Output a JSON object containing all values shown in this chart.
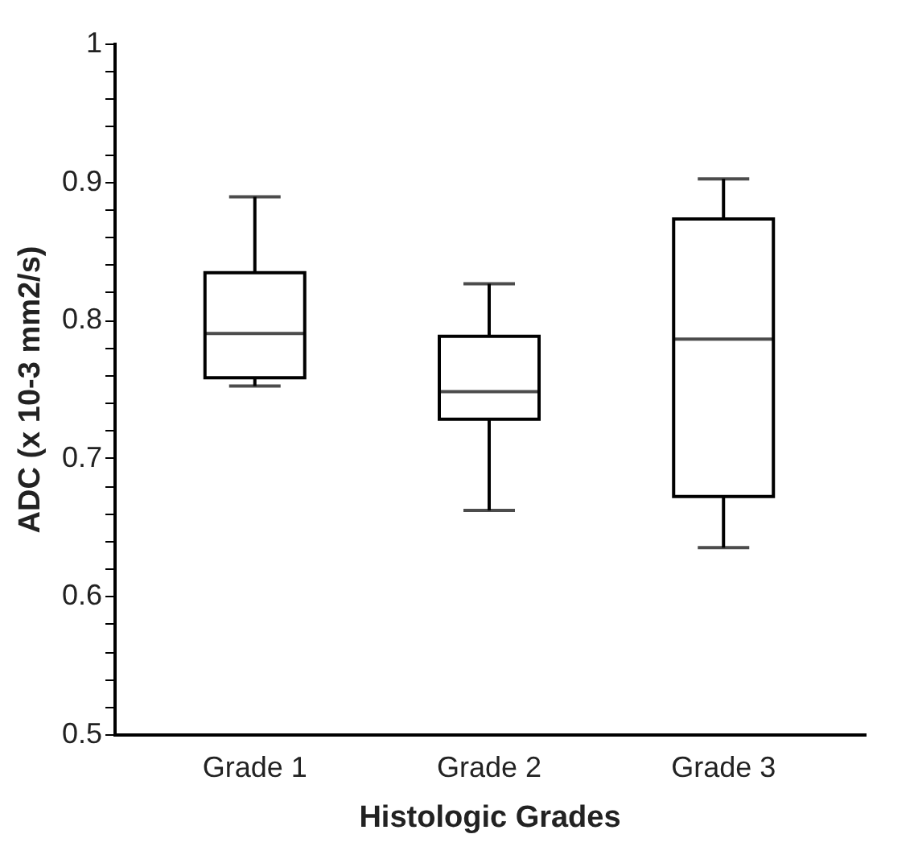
{
  "chart_data": {
    "type": "box",
    "xlabel": "Histologic Grades",
    "ylabel": "ADC (x 10-3 mm2/s)",
    "categories": [
      "Grade 1",
      "Grade 2",
      "Grade 3"
    ],
    "boxes": [
      {
        "low": 0.752,
        "q1": 0.758,
        "median": 0.79,
        "q3": 0.834,
        "high": 0.889
      },
      {
        "low": 0.662,
        "q1": 0.728,
        "median": 0.748,
        "q3": 0.788,
        "high": 0.826
      },
      {
        "low": 0.635,
        "q1": 0.672,
        "median": 0.786,
        "q3": 0.873,
        "high": 0.902
      }
    ],
    "ylim": [
      0.5,
      1
    ],
    "yticks": [
      0.5,
      {
        "value": 0.52,
        "label": null
      },
      {
        "value": 0.54,
        "label": null
      },
      {
        "value": 0.56,
        "label": null
      },
      {
        "value": 0.58,
        "label": null
      },
      0.6,
      {
        "value": 0.62,
        "label": null
      },
      {
        "value": 0.64,
        "label": null
      },
      {
        "value": 0.66,
        "label": null
      },
      {
        "value": 0.68,
        "label": null
      },
      0.7,
      {
        "value": 0.72,
        "label": null
      },
      {
        "value": 0.74,
        "label": null
      },
      {
        "value": 0.76,
        "label": null
      },
      {
        "value": 0.78,
        "label": null
      },
      0.8,
      {
        "value": 0.82,
        "label": null
      },
      {
        "value": 0.84,
        "label": null
      },
      {
        "value": 0.86,
        "label": null
      },
      {
        "value": 0.88,
        "label": null
      },
      0.9,
      {
        "value": 0.92,
        "label": null
      },
      {
        "value": 0.94,
        "label": null
      },
      {
        "value": 0.96,
        "label": null
      },
      {
        "value": 0.98,
        "label": null
      },
      1
    ],
    "grid": false
  }
}
